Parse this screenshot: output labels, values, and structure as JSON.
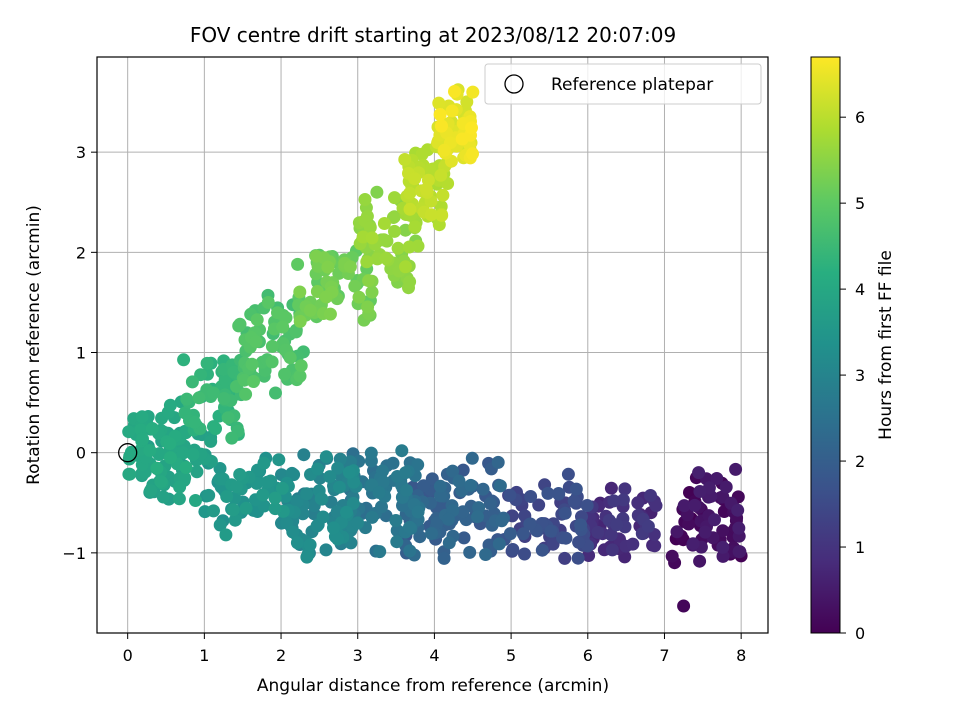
{
  "chart_data": {
    "type": "scatter",
    "title": "FOV centre drift starting at 2023/08/12 20:07:09",
    "xlabel": "Angular distance from reference (arcmin)",
    "ylabel": "Rotation from reference (arcmin)",
    "xlim": [
      -0.4,
      8.35
    ],
    "ylim": [
      -1.8,
      3.95
    ],
    "xticks": [
      0,
      1,
      2,
      3,
      4,
      5,
      6,
      7,
      8
    ],
    "yticks": [
      -1,
      0,
      1,
      2,
      3
    ],
    "ytick_labels": [
      "−1",
      "0",
      "1",
      "2",
      "3"
    ],
    "grid": true,
    "legend": {
      "position": "top-right",
      "entries": [
        {
          "label": "Reference platepar",
          "marker": "hollow-circle",
          "color": "#000000"
        }
      ]
    },
    "reference_point": {
      "x": 0,
      "y": 0
    },
    "colorbar": {
      "label": "Hours from first FF file",
      "min": 0,
      "max": 6.7,
      "ticks": [
        0,
        1,
        2,
        3,
        4,
        5,
        6
      ],
      "colormap": "viridis"
    },
    "clusters": [
      {
        "xr": [
          7.1,
          8.0
        ],
        "yr": [
          -1.15,
          -0.15
        ],
        "hr": [
          0.0,
          0.6
        ],
        "n": 70
      },
      {
        "xr": [
          6.0,
          6.9
        ],
        "yr": [
          -1.05,
          -0.3
        ],
        "hr": [
          0.6,
          1.2
        ],
        "n": 55
      },
      {
        "xr": [
          4.9,
          6.0
        ],
        "yr": [
          -1.1,
          -0.15
        ],
        "hr": [
          1.2,
          1.8
        ],
        "n": 65
      },
      {
        "xr": [
          3.6,
          5.0
        ],
        "yr": [
          -1.1,
          0.0
        ],
        "hr": [
          1.8,
          2.4
        ],
        "n": 95
      },
      {
        "xr": [
          2.9,
          3.8
        ],
        "yr": [
          -1.05,
          0.15
        ],
        "hr": [
          2.4,
          2.8
        ],
        "n": 70
      },
      {
        "xr": [
          2.0,
          3.0
        ],
        "yr": [
          -1.1,
          0.05
        ],
        "hr": [
          2.8,
          3.3
        ],
        "n": 95
      },
      {
        "xr": [
          1.0,
          2.1
        ],
        "yr": [
          -0.85,
          -0.05
        ],
        "hr": [
          3.3,
          3.7
        ],
        "n": 55
      },
      {
        "xr": [
          0.15,
          1.1
        ],
        "yr": [
          -0.6,
          0.3
        ],
        "hr": [
          3.7,
          4.0
        ],
        "n": 55
      },
      {
        "xr": [
          0.0,
          0.8
        ],
        "yr": [
          -0.3,
          0.6
        ],
        "hr": [
          3.9,
          4.2
        ],
        "n": 55
      },
      {
        "xr": [
          0.7,
          1.5
        ],
        "yr": [
          0.0,
          1.0
        ],
        "hr": [
          4.2,
          4.6
        ],
        "n": 60
      },
      {
        "xr": [
          1.4,
          2.3
        ],
        "yr": [
          0.5,
          1.6
        ],
        "hr": [
          4.6,
          5.0
        ],
        "n": 70
      },
      {
        "xr": [
          2.2,
          3.2
        ],
        "yr": [
          1.2,
          2.1
        ],
        "hr": [
          5.0,
          5.4
        ],
        "n": 70
      },
      {
        "xr": [
          3.0,
          3.8
        ],
        "yr": [
          1.5,
          2.6
        ],
        "hr": [
          5.4,
          5.8
        ],
        "n": 60
      },
      {
        "xr": [
          3.6,
          4.2
        ],
        "yr": [
          2.2,
          3.2
        ],
        "hr": [
          5.8,
          6.2
        ],
        "n": 55
      },
      {
        "xr": [
          4.0,
          4.5
        ],
        "yr": [
          2.8,
          3.65
        ],
        "hr": [
          6.2,
          6.7
        ],
        "n": 55
      }
    ],
    "outliers": [
      {
        "x": 7.25,
        "y": -1.53,
        "h": 0.1
      },
      {
        "x": 3.25,
        "y": 2.6,
        "h": 5.4
      },
      {
        "x": 2.5,
        "y": 1.97,
        "h": 5.0
      },
      {
        "x": 4.5,
        "y": 3.6,
        "h": 6.6
      }
    ]
  }
}
